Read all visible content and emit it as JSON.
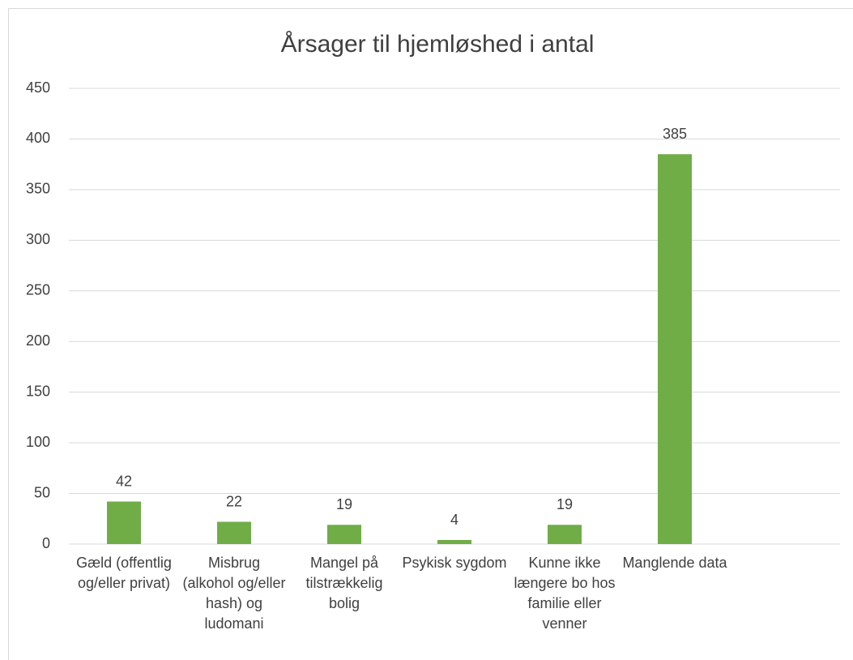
{
  "chart_data": {
    "type": "bar",
    "title": "Årsager til hjemløshed i antal",
    "categories": [
      "Gæld (offentlig og/eller privat)",
      "Misbrug (alkohol og/eller hash) og ludomani",
      "Mangel på tilstrækkelig bolig",
      "Psykisk sygdom",
      "Kunne ikke længere bo hos familie eller venner",
      "Manglende data",
      null
    ],
    "values": [
      42,
      22,
      19,
      4,
      19,
      385,
      null
    ],
    "color": "#70ad47",
    "ylim": [
      0,
      450
    ],
    "yticks": [
      0,
      50,
      100,
      150,
      200,
      250,
      300,
      350,
      400,
      450
    ],
    "grid": true,
    "data_labels": true
  }
}
